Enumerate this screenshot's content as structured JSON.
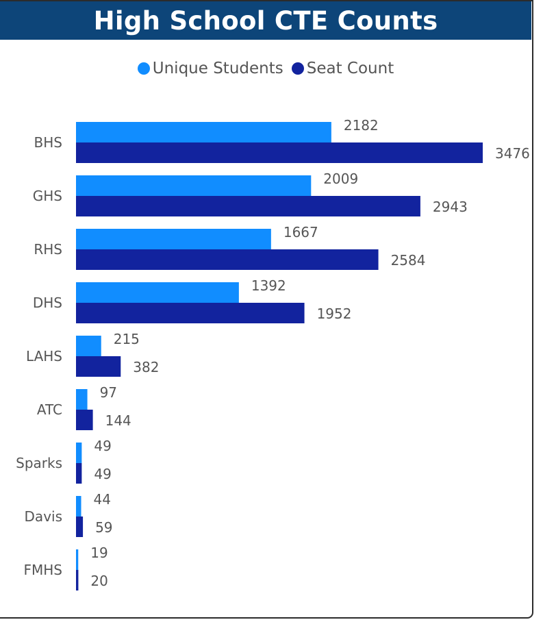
{
  "title": "High School CTE Counts",
  "legend": [
    {
      "label": "Unique Students",
      "color": "#118dff"
    },
    {
      "label": "Seat Count",
      "color": "#12239e"
    }
  ],
  "chart_data": {
    "type": "bar",
    "orientation": "horizontal",
    "title": "High School CTE Counts",
    "categories": [
      "BHS",
      "GHS",
      "RHS",
      "DHS",
      "LAHS",
      "ATC",
      "Sparks",
      "Davis",
      "FMHS"
    ],
    "series": [
      {
        "name": "Unique Students",
        "color": "#118dff",
        "values": [
          2182,
          2009,
          1667,
          1392,
          215,
          97,
          49,
          44,
          19
        ]
      },
      {
        "name": "Seat Count",
        "color": "#12239e",
        "values": [
          3476,
          2943,
          2584,
          1952,
          382,
          144,
          49,
          59,
          20
        ]
      }
    ],
    "xlim": [
      0,
      3476
    ],
    "grid": false,
    "data_labels": true,
    "legend_position": "top-center"
  }
}
